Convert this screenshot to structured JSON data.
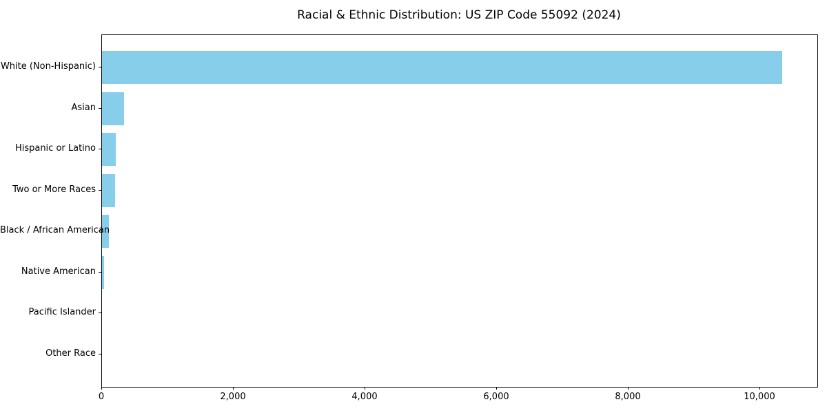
{
  "chart_data": {
    "type": "bar",
    "orientation": "horizontal",
    "title": "Racial & Ethnic Distribution: US ZIP Code 55092 (2024)",
    "categories": [
      "White (Non-Hispanic)",
      "Asian",
      "Hispanic or Latino",
      "Two or More Races",
      "Black / African American",
      "Native American",
      "Pacific Islander",
      "Other Race"
    ],
    "values": [
      10340,
      335,
      210,
      200,
      103,
      33,
      0,
      0
    ],
    "xlabel": "",
    "ylabel": "",
    "xlim": [
      0,
      10870
    ],
    "x_ticks": [
      0,
      2000,
      4000,
      6000,
      8000,
      10000
    ],
    "x_tick_labels": [
      "0",
      "2,000",
      "4,000",
      "6,000",
      "8,000",
      "10,000"
    ],
    "bar_color": "#87CEEB",
    "grid": false,
    "legend": "none",
    "background_color": "#ffffff",
    "spine_color": "#000000"
  }
}
